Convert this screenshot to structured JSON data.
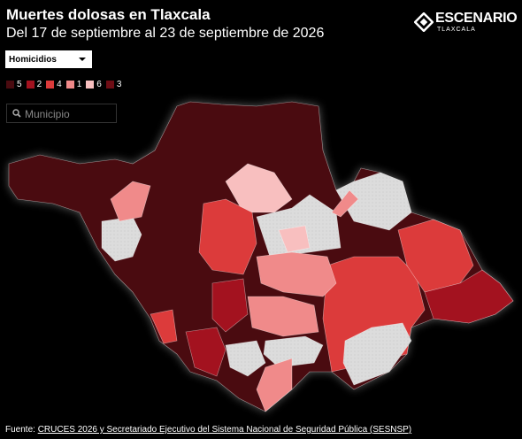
{
  "header": {
    "title": "Muertes dolosas en Tlaxcala",
    "subtitle": "Del 17 de septiembre al 23 de septiembre de 2026"
  },
  "logo": {
    "name": "ESCENARIO",
    "sub": "TLAXCALA"
  },
  "controls": {
    "dropdown": "Homicidios",
    "search_placeholder": "Municipio"
  },
  "legend": [
    {
      "label": 5,
      "color": "#4a0b10"
    },
    {
      "label": 2,
      "color": "#a3121f"
    },
    {
      "label": 4,
      "color": "#dc3b3b"
    },
    {
      "label": 1,
      "color": "#f08a8a"
    },
    {
      "label": 6,
      "color": "#f8bfbf"
    },
    {
      "label": 3,
      "color": "#6e0d15"
    }
  ],
  "footer": {
    "prefix": "Fuente:",
    "source": "CRUCES 2026 y Secretariado Ejecutivo del Sistema Nacional de Seguridad Pública (SESNSP)"
  }
}
